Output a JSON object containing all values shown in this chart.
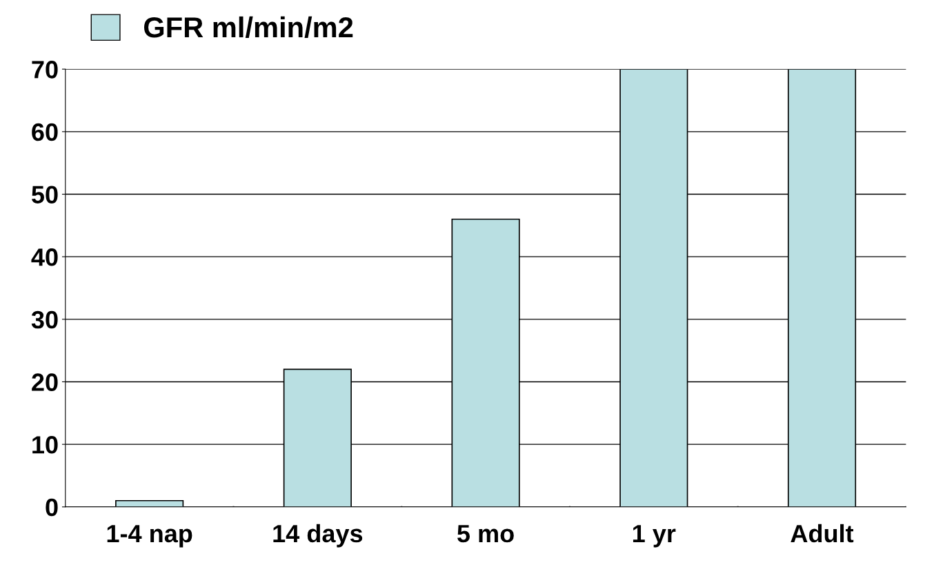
{
  "chart_data": {
    "type": "bar",
    "categories": [
      "1-4 nap",
      "14 days",
      "5 mo",
      "1 yr",
      "Adult"
    ],
    "series": [
      {
        "name": "GFR ml/min/m2",
        "color": "#b9dfe2",
        "values": [
          1,
          22,
          46,
          70,
          70
        ]
      }
    ],
    "ylim": [
      0,
      70
    ],
    "yticks": [
      0,
      10,
      20,
      30,
      40,
      50,
      60,
      70
    ],
    "grid": "y",
    "legend": "top left"
  }
}
